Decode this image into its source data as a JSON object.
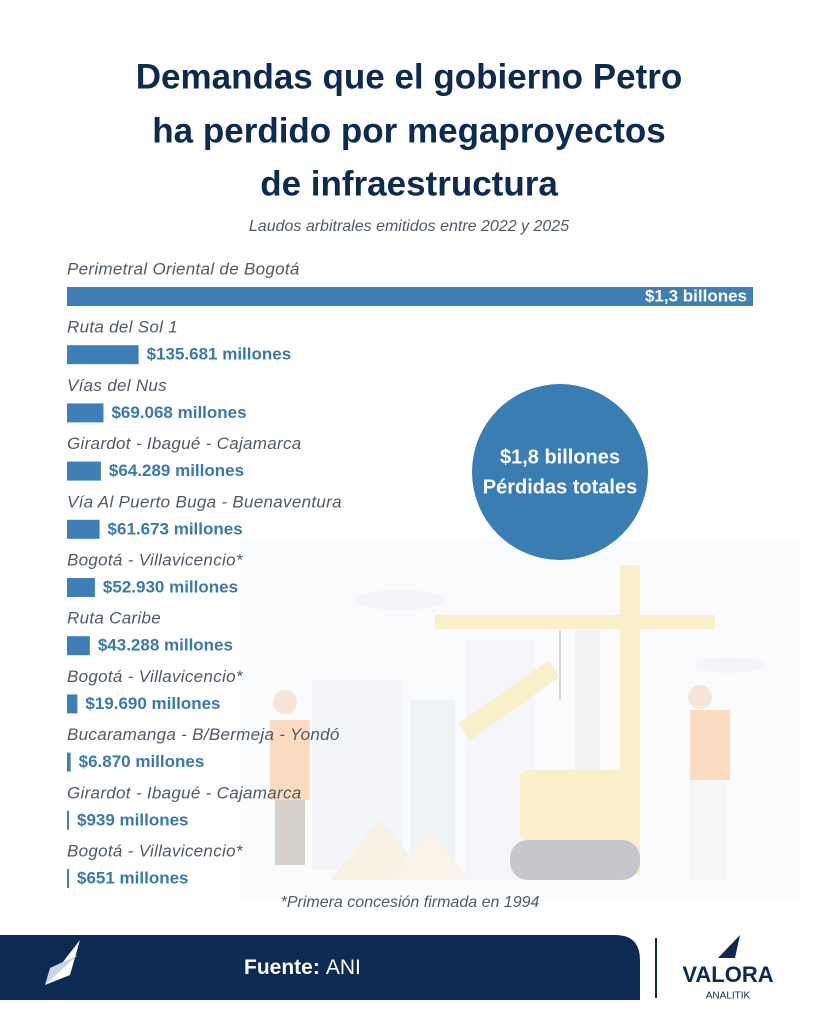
{
  "chart_data": {
    "type": "bar",
    "orientation": "horizontal",
    "title": [
      "Demandas que el gobierno Petro",
      "ha perdido por megaproyectos",
      "de infraestructura"
    ],
    "subtitle": "Laudos arbitrales emitidos entre 2022 y 2025",
    "categories": [
      "Perimetral Oriental de Bogotá",
      "Ruta del Sol 1",
      "Vías del Nus",
      "Girardot - Ibagué - Cajamarca",
      "Vía Al Puerto Buga - Buenaventura",
      "Bogotá - Villavicencio*",
      "Ruta Caribe",
      "Bogotá - Villavicencio*",
      "Bucaramanga - B/Bermeja - Yondó",
      "Girardot - Ibagué - Cajamarca",
      "Bogotá - Villavicencio*"
    ],
    "values": [
      1300000,
      135681,
      69068,
      64289,
      61673,
      52930,
      43288,
      19690,
      6870,
      939,
      651
    ],
    "value_labels": [
      "$1,3 billones",
      "$135.681 millones",
      "$69.068 millones",
      "$64.289 millones",
      "$61.673 millones",
      "$52.930 millones",
      "$43.288 millones",
      "$19.690 millones",
      "$6.870 millones",
      "$939 millones",
      "$651 millones"
    ],
    "color": "#3f7fb8",
    "annotations": [
      "$1,8 billones",
      "Pérdidas totales"
    ],
    "footnote": "*Primera concesión firmada en 1994",
    "source_label": "Fuente:",
    "source": "ANI",
    "brand": "VALORA",
    "brand_sub": "ANALITIK"
  }
}
